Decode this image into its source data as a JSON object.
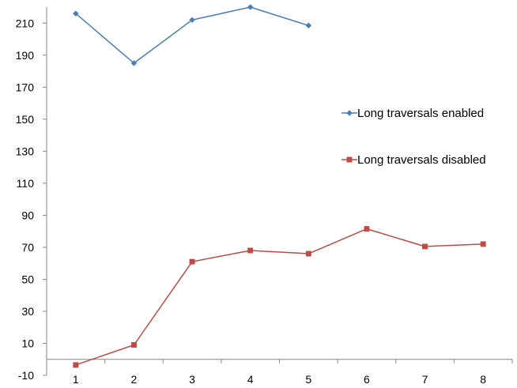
{
  "chart_data": {
    "type": "line",
    "x": [
      1,
      2,
      3,
      4,
      5,
      6,
      7,
      8
    ],
    "ylim": [
      -10,
      220
    ],
    "yticks": [
      -10,
      10,
      30,
      50,
      70,
      90,
      110,
      130,
      150,
      170,
      190,
      210
    ],
    "grid": false,
    "legend_position": "right",
    "series": [
      {
        "name": "Long traversals enabled",
        "color": "#4a7ebb",
        "marker": "diamond",
        "x": [
          1,
          2,
          3,
          4,
          5
        ],
        "values": [
          216,
          185,
          212,
          220,
          208.5
        ]
      },
      {
        "name": "Long traversals disabled",
        "color": "#be4b48",
        "marker": "square",
        "x": [
          1,
          2,
          3,
          4,
          5,
          6,
          7,
          8
        ],
        "values": [
          -3.5,
          9,
          61,
          68,
          66,
          81.5,
          70.5,
          72
        ]
      }
    ]
  }
}
